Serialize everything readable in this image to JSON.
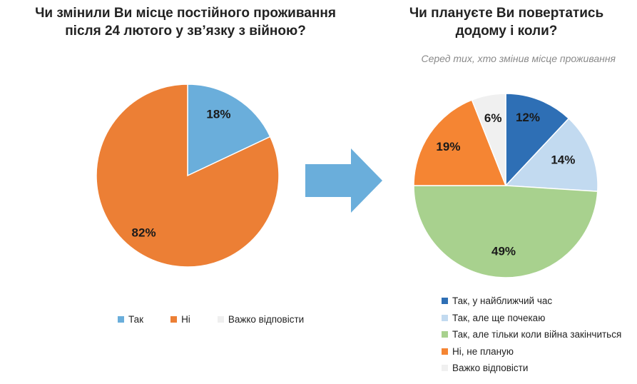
{
  "chart_data": [
    {
      "type": "pie",
      "title_lines": [
        "Чи змінили Ви місце постійного проживання",
        "після  24 лютого у зв’язку з війною?"
      ],
      "subtitle": "",
      "slices": [
        {
          "label": "Так",
          "value": 18,
          "display": "18%",
          "color": "#6aaedb"
        },
        {
          "label": "Ні",
          "value": 82,
          "display": "82%",
          "color": "#ec7f35"
        },
        {
          "label": "Важко відповісти",
          "value": 0,
          "display": "",
          "color": "#efefef"
        }
      ],
      "legend_position": "bottom"
    },
    {
      "type": "pie",
      "title_lines": [
        "Чи плануєте Ви повертатись",
        "додому і коли?"
      ],
      "subtitle": "Серед тих, хто змінив місце проживання",
      "slices": [
        {
          "label": "Так, у найближчий час",
          "value": 12,
          "display": "12%",
          "color": "#2e6fb5"
        },
        {
          "label": "Так, але ще почекаю",
          "value": 14,
          "display": "14%",
          "color": "#c2daf0"
        },
        {
          "label": "Так, але тільки коли війна закінчиться",
          "value": 49,
          "display": "49%",
          "color": "#a8d18e"
        },
        {
          "label": "Ні, не планую",
          "value": 19,
          "display": "19%",
          "color": "#f58533"
        },
        {
          "label": "Важко відповісти",
          "value": 6,
          "display": "6%",
          "color": "#f0f0f0"
        }
      ],
      "legend_position": "bottom-right"
    }
  ],
  "arrow_color": "#6aaedb"
}
